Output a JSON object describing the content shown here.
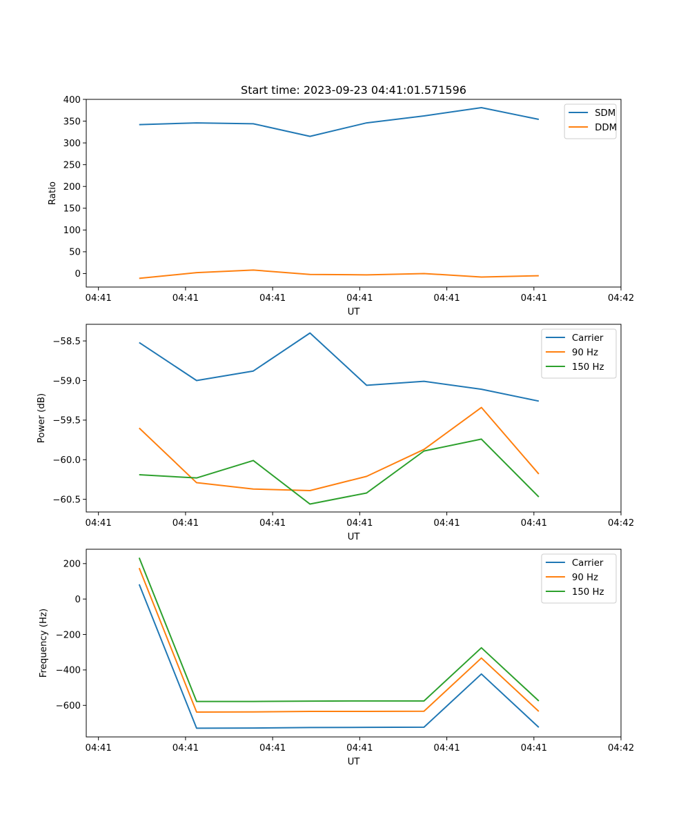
{
  "figure": {
    "title": "Start time: 2023-09-23 04:41:01.571596"
  },
  "chart_data": [
    {
      "type": "line",
      "title": "Start time: 2023-09-23 04:41:01.571596",
      "xlabel": "UT",
      "ylabel": "Ratio",
      "x_tick_labels": [
        "04:41",
        "04:41",
        "04:41",
        "04:41",
        "04:41",
        "04:41",
        "04:42"
      ],
      "xlim": [
        -0.14,
        6.0
      ],
      "ylim": [
        -31,
        400
      ],
      "y_ticks": [
        0,
        50,
        100,
        150,
        200,
        250,
        300,
        350,
        400
      ],
      "y_tick_labels": [
        "0",
        "50",
        "100",
        "150",
        "200",
        "250",
        "300",
        "350",
        "400"
      ],
      "x": [
        0.468,
        1.127,
        1.778,
        2.429,
        3.079,
        3.738,
        4.397,
        5.056
      ],
      "legend_position": "upper-right",
      "series": [
        {
          "name": "SDM",
          "color": "#1f77b4",
          "values": [
            342,
            346,
            344,
            315,
            346,
            362,
            381,
            354
          ]
        },
        {
          "name": "DDM",
          "color": "#ff7f0e",
          "values": [
            -11,
            2,
            8,
            -2,
            -3,
            0,
            -8,
            -5
          ]
        }
      ]
    },
    {
      "type": "line",
      "title": "",
      "xlabel": "UT",
      "ylabel": "Power (dB)",
      "x_tick_labels": [
        "04:41",
        "04:41",
        "04:41",
        "04:41",
        "04:41",
        "04:41",
        "04:42"
      ],
      "xlim": [
        -0.14,
        6.0
      ],
      "ylim": [
        -60.66,
        -58.29
      ],
      "y_ticks": [
        -60.5,
        -60.0,
        -59.5,
        -59.0,
        -58.5
      ],
      "y_tick_labels": [
        "−60.5",
        "−60.0",
        "−59.5",
        "−59.0",
        "−58.5"
      ],
      "x": [
        0.468,
        1.127,
        1.778,
        2.429,
        3.079,
        3.738,
        4.397,
        5.056
      ],
      "legend_position": "upper-right",
      "series": [
        {
          "name": "Carrier",
          "color": "#1f77b4",
          "values": [
            -58.52,
            -59.0,
            -58.88,
            -58.4,
            -59.06,
            -59.01,
            -59.11,
            -59.26
          ]
        },
        {
          "name": "90 Hz",
          "color": "#ff7f0e",
          "values": [
            -59.6,
            -60.29,
            -60.37,
            -60.39,
            -60.21,
            -59.87,
            -59.34,
            -60.18
          ]
        },
        {
          "name": "150 Hz",
          "color": "#2ca02c",
          "values": [
            -60.19,
            -60.23,
            -60.01,
            -60.56,
            -60.42,
            -59.89,
            -59.74,
            -60.47
          ]
        }
      ]
    },
    {
      "type": "line",
      "title": "",
      "xlabel": "UT",
      "ylabel": "Frequency (Hz)",
      "x_tick_labels": [
        "04:41",
        "04:41",
        "04:41",
        "04:41",
        "04:41",
        "04:41",
        "04:42"
      ],
      "xlim": [
        -0.14,
        6.0
      ],
      "ylim": [
        -778,
        281
      ],
      "y_ticks": [
        -600,
        -400,
        -200,
        0,
        200
      ],
      "y_tick_labels": [
        "−600",
        "−400",
        "−200",
        "0",
        "200"
      ],
      "x": [
        0.468,
        1.127,
        1.778,
        2.429,
        3.079,
        3.738,
        4.397,
        5.056
      ],
      "legend_position": "upper-right",
      "series": [
        {
          "name": "Carrier",
          "color": "#1f77b4",
          "values": [
            83,
            -729,
            -728,
            -725,
            -724,
            -723,
            -423,
            -724
          ]
        },
        {
          "name": "90 Hz",
          "color": "#ff7f0e",
          "values": [
            175,
            -638,
            -637,
            -634,
            -634,
            -633,
            -333,
            -634
          ]
        },
        {
          "name": "150 Hz",
          "color": "#2ca02c",
          "values": [
            233,
            -578,
            -578,
            -576,
            -575,
            -575,
            -275,
            -575
          ]
        }
      ]
    }
  ]
}
